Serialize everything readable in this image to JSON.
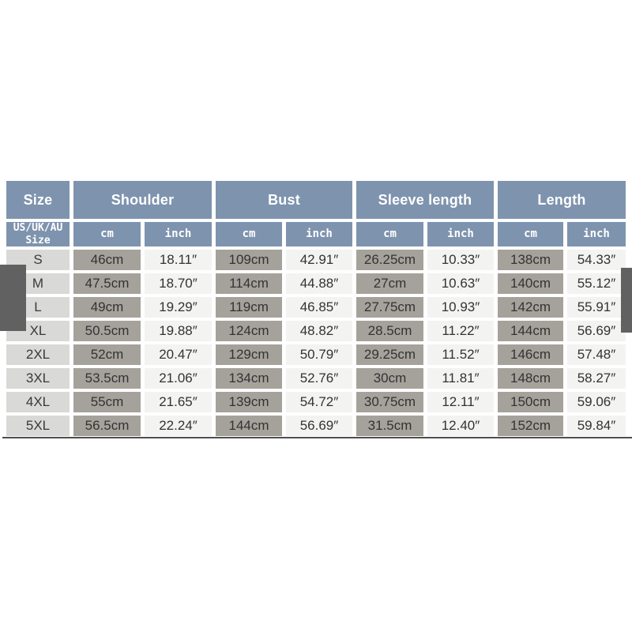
{
  "colors": {
    "header_blue": "#7e93ae",
    "header_text": "#ffffff",
    "cm_cell_gray": "#a5a29c",
    "inch_cell_white": "#f3f3f1",
    "size_cell_gray": "#d9d9d7",
    "data_text": "#333333",
    "bottom_rule": "#4e4e4e",
    "edge_artifact_gray": "#616161",
    "page_background": "#ffffff"
  },
  "table": {
    "group_headers": [
      {
        "label": "Size",
        "span": 1
      },
      {
        "label": "Shoulder",
        "span": 2
      },
      {
        "label": "Bust",
        "span": 2
      },
      {
        "label": "Sleeve length",
        "span": 2
      },
      {
        "label": "Length",
        "span": 2
      }
    ],
    "sub_headers": [
      "US/UK/AU\nSize",
      "cm",
      "inch",
      "cm",
      "inch",
      "cm",
      "inch",
      "cm",
      "inch"
    ],
    "rows": [
      [
        "S",
        "46cm",
        "18.11″",
        "109cm",
        "42.91″",
        "26.25cm",
        "10.33″",
        "138cm",
        "54.33″"
      ],
      [
        "M",
        "47.5cm",
        "18.70″",
        "114cm",
        "44.88″",
        "27cm",
        "10.63″",
        "140cm",
        "55.12″"
      ],
      [
        "L",
        "49cm",
        "19.29″",
        "119cm",
        "46.85″",
        "27.75cm",
        "10.93″",
        "142cm",
        "55.91″"
      ],
      [
        "XL",
        "50.5cm",
        "19.88″",
        "124cm",
        "48.82″",
        "28.5cm",
        "11.22″",
        "144cm",
        "56.69″"
      ],
      [
        "2XL",
        "52cm",
        "20.47″",
        "129cm",
        "50.79″",
        "29.25cm",
        "11.52″",
        "146cm",
        "57.48″"
      ],
      [
        "3XL",
        "53.5cm",
        "21.06″",
        "134cm",
        "52.76″",
        "30cm",
        "11.81″",
        "148cm",
        "58.27″"
      ],
      [
        "4XL",
        "55cm",
        "21.65″",
        "139cm",
        "54.72″",
        "30.75cm",
        "12.11″",
        "150cm",
        "59.06″"
      ],
      [
        "5XL",
        "56.5cm",
        "22.24″",
        "144cm",
        "56.69″",
        "31.5cm",
        "12.40″",
        "152cm",
        "59.84″"
      ]
    ]
  }
}
